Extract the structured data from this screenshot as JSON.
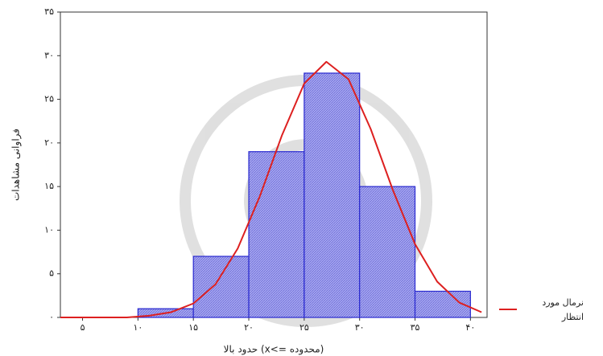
{
  "chart_data": {
    "type": "histogram",
    "y_label": "فراوانی مشاهدات",
    "x_label": "حدود بالا (x<= محدوده)",
    "bins": [
      10,
      15,
      20,
      25,
      30,
      35,
      40
    ],
    "counts": [
      1,
      7,
      19,
      28,
      15,
      3
    ],
    "color": "#8f8fe8",
    "edge_color": "#2a2ad0",
    "curve": {
      "name": "نرمال مورد انتظار",
      "color": "#dd2020",
      "x": [
        3,
        5,
        7,
        9,
        11,
        13,
        15,
        17,
        19,
        21,
        23,
        25,
        27,
        29,
        31,
        33,
        35,
        37,
        39,
        41
      ],
      "values": [
        0,
        0,
        0,
        0,
        0.2,
        0.6,
        1.6,
        3.8,
        7.9,
        13.9,
        20.9,
        26.8,
        29.3,
        27.3,
        21.6,
        14.6,
        8.4,
        4.1,
        1.7,
        0.6
      ]
    },
    "xlim": [
      3,
      41.5
    ],
    "ylim": [
      0,
      35
    ],
    "xticks": [
      {
        "value": 5,
        "label": "۵"
      },
      {
        "value": 10,
        "label": "۱۰"
      },
      {
        "value": 15,
        "label": "۱۵"
      },
      {
        "value": 20,
        "label": "۲۰"
      },
      {
        "value": 25,
        "label": "۲۵"
      },
      {
        "value": 30,
        "label": "۳۰"
      },
      {
        "value": 35,
        "label": "۳۵"
      },
      {
        "value": 40,
        "label": "۴۰"
      }
    ],
    "yticks": [
      {
        "value": 0,
        "label": "۰"
      },
      {
        "value": 5,
        "label": "۵"
      },
      {
        "value": 10,
        "label": "۱۰"
      },
      {
        "value": 15,
        "label": "۱۵"
      },
      {
        "value": 20,
        "label": "۲۰"
      },
      {
        "value": 25,
        "label": "۲۵"
      },
      {
        "value": 30,
        "label": "۳۰"
      },
      {
        "value": 35,
        "label": "۳۵"
      }
    ],
    "legend": "right"
  }
}
